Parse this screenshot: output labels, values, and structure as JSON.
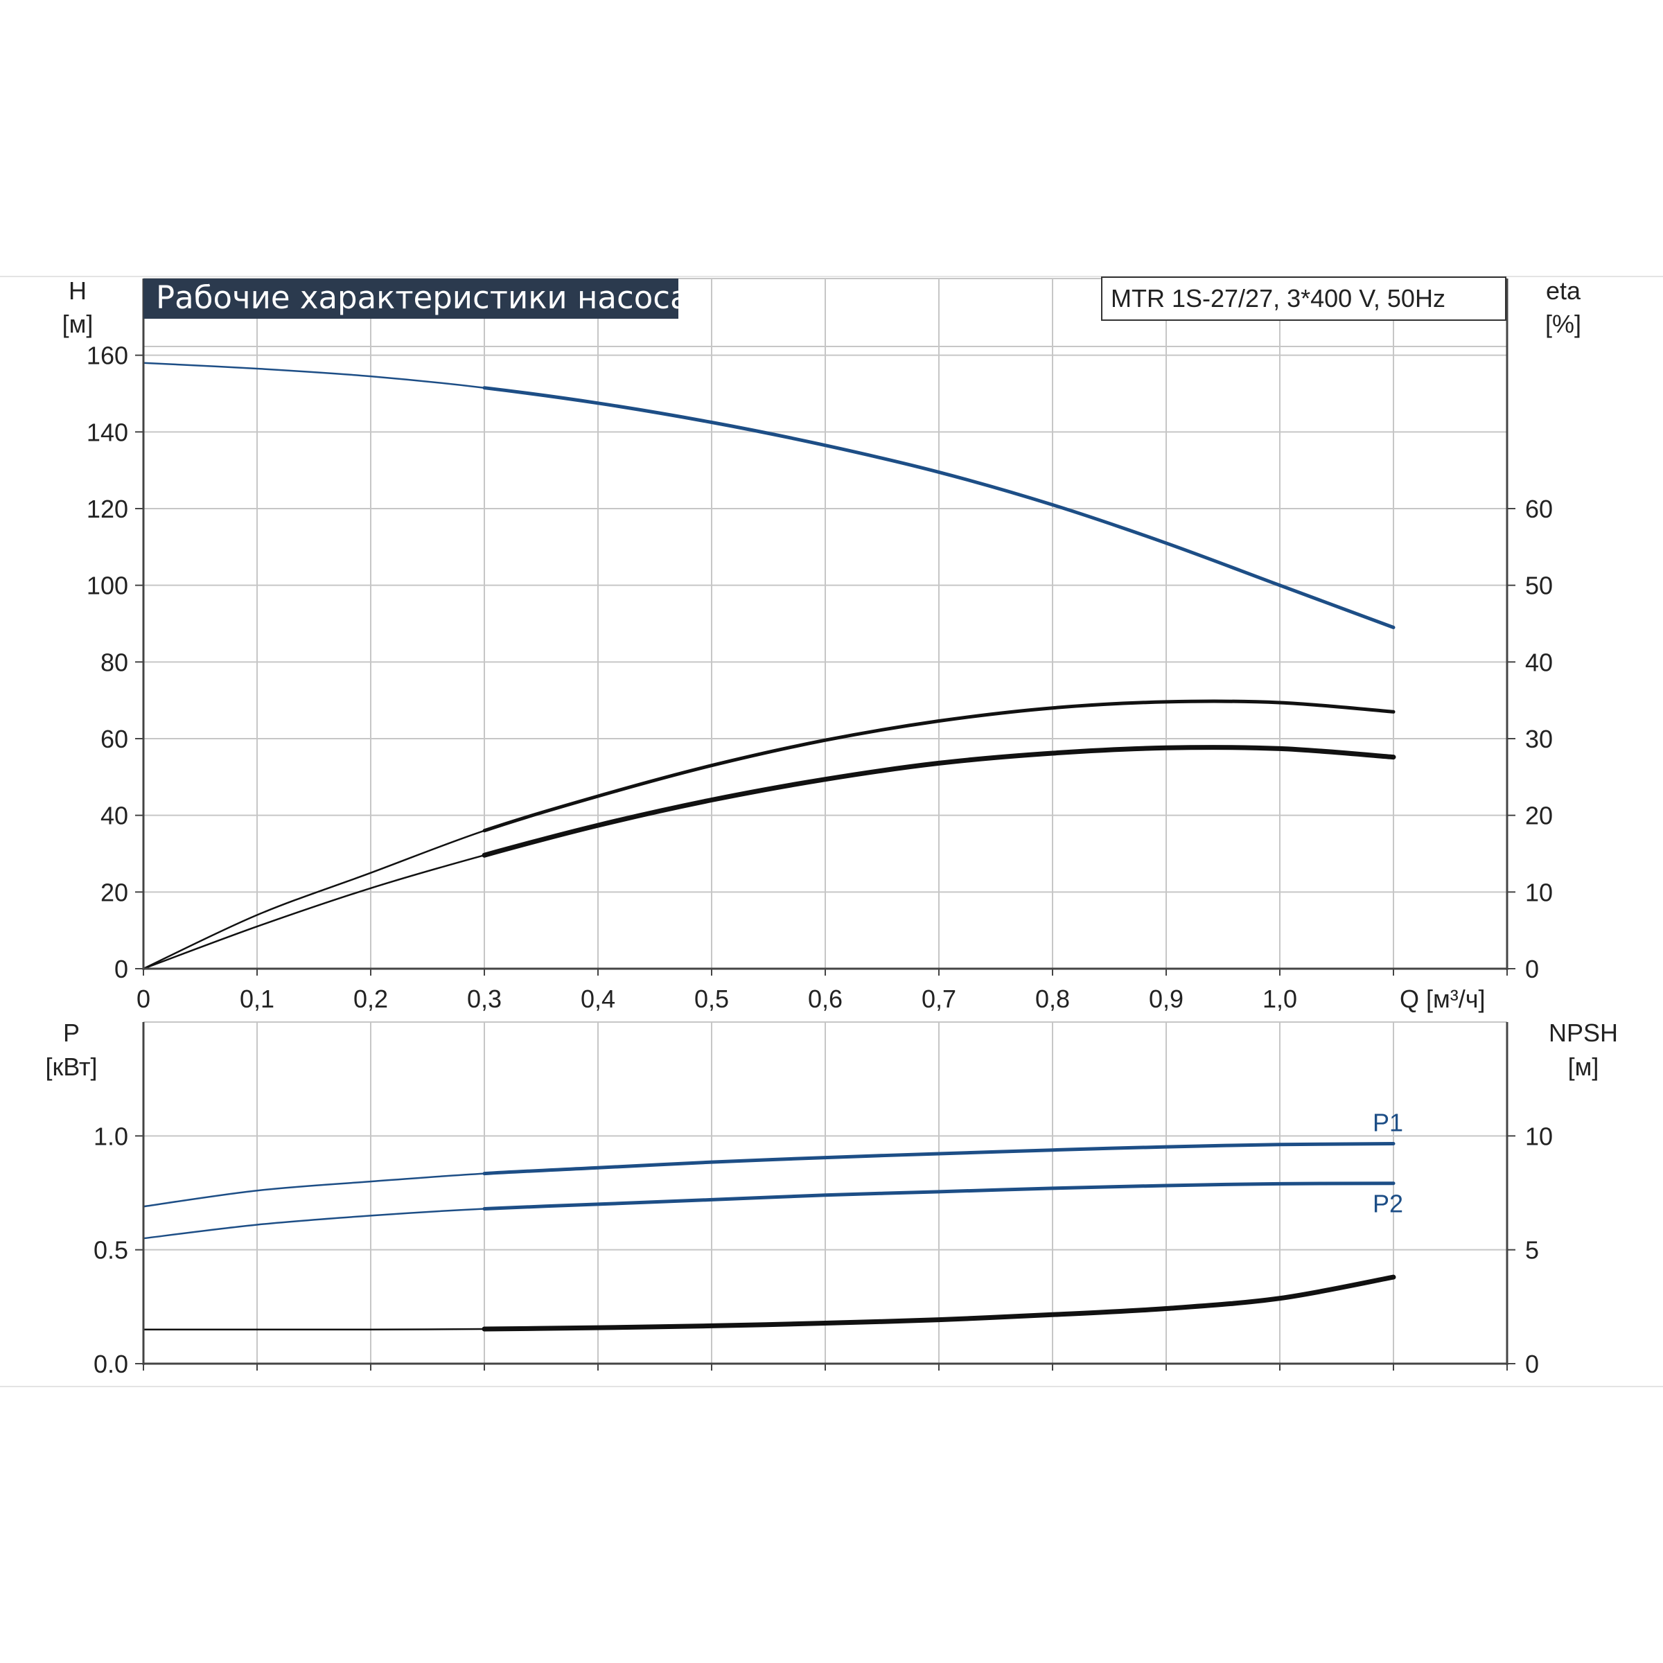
{
  "title": "Рабочие характеристики насоса",
  "model": "MTR 1S-27/27, 3*400 V, 50Hz",
  "colors": {
    "blue": "#1d4e86",
    "black": "#111111",
    "grid": "#c6c6c6",
    "axis": "#444444",
    "title_bg": "#2b3a4e"
  },
  "chart_data": [
    {
      "type": "line",
      "x_axis_label": "Q [м³/ч]",
      "x_ticks": [
        "0",
        "0,1",
        "0,2",
        "0,3",
        "0,4",
        "0,5",
        "0,6",
        "0,7",
        "0,8",
        "0,9",
        "1,0"
      ],
      "xlim": [
        0,
        1.2
      ],
      "y_left": {
        "label_line1": "H",
        "label_line2": "[м]",
        "ticks": [
          "0",
          "20",
          "40",
          "60",
          "80",
          "100",
          "120",
          "140",
          "160"
        ],
        "ylim": [
          0,
          180
        ]
      },
      "y_right": {
        "label_line1": "eta",
        "label_line2": "[%]",
        "ticks": [
          "0",
          "10",
          "20",
          "30",
          "40",
          "50",
          "60"
        ],
        "ylim": [
          0,
          90
        ]
      },
      "grid": true,
      "series": [
        {
          "key": "H",
          "axis": "left",
          "color": "#1d4e86",
          "x": [
            0,
            0.1,
            0.2,
            0.3,
            0.4,
            0.5,
            0.6,
            0.7,
            0.8,
            0.9,
            1.0,
            1.1
          ],
          "y": [
            158,
            156.5,
            154.5,
            151.5,
            147.5,
            142.5,
            136.5,
            129.5,
            121,
            111,
            100,
            89
          ]
        },
        {
          "key": "eta-thin",
          "axis": "right",
          "color": "#111111",
          "x": [
            0,
            0.1,
            0.2,
            0.3,
            0.4,
            0.5,
            0.6,
            0.7,
            0.8,
            0.9,
            1.0,
            1.1
          ],
          "y": [
            0,
            7,
            12.5,
            18,
            22.5,
            26.5,
            29.8,
            32.3,
            34,
            34.8,
            34.7,
            33.5
          ]
        },
        {
          "key": "eta-thick",
          "axis": "right",
          "color": "#111111",
          "x": [
            0,
            0.1,
            0.2,
            0.3,
            0.4,
            0.5,
            0.6,
            0.7,
            0.8,
            0.9,
            1.0,
            1.1
          ],
          "y": [
            0,
            5.5,
            10.5,
            14.8,
            18.7,
            22,
            24.7,
            26.8,
            28.1,
            28.8,
            28.7,
            27.6
          ]
        }
      ]
    },
    {
      "type": "line",
      "x_axis_label": "",
      "xlim": [
        0,
        1.2
      ],
      "y_left": {
        "label_line1": "P",
        "label_line2": "[кВт]",
        "ticks": [
          "0.0",
          "0.5",
          "1.0"
        ],
        "ylim": [
          0,
          1.5
        ]
      },
      "y_right": {
        "label_line1": "NPSH",
        "label_line2": "[м]",
        "ticks": [
          "0",
          "5",
          "10"
        ],
        "ylim": [
          0,
          15
        ]
      },
      "grid": true,
      "series": [
        {
          "key": "P1",
          "name": "P1",
          "axis": "left",
          "color": "#1d4e86",
          "x": [
            0,
            0.1,
            0.2,
            0.3,
            0.4,
            0.5,
            0.6,
            0.7,
            0.8,
            0.9,
            1.0,
            1.1
          ],
          "y": [
            0.69,
            0.76,
            0.8,
            0.835,
            0.86,
            0.885,
            0.905,
            0.922,
            0.938,
            0.952,
            0.962,
            0.966
          ]
        },
        {
          "key": "P2",
          "name": "P2",
          "axis": "left",
          "color": "#1d4e86",
          "x": [
            0,
            0.1,
            0.2,
            0.3,
            0.4,
            0.5,
            0.6,
            0.7,
            0.8,
            0.9,
            1.0,
            1.1
          ],
          "y": [
            0.55,
            0.61,
            0.65,
            0.68,
            0.7,
            0.72,
            0.74,
            0.755,
            0.77,
            0.782,
            0.79,
            0.792
          ]
        },
        {
          "key": "NPSH",
          "axis": "right",
          "color": "#111111",
          "x": [
            0,
            0.1,
            0.2,
            0.3,
            0.4,
            0.5,
            0.6,
            0.7,
            0.8,
            0.9,
            1.0,
            1.1
          ],
          "y": [
            1.5,
            1.5,
            1.5,
            1.52,
            1.58,
            1.66,
            1.78,
            1.93,
            2.15,
            2.42,
            2.87,
            3.8
          ]
        }
      ]
    }
  ]
}
